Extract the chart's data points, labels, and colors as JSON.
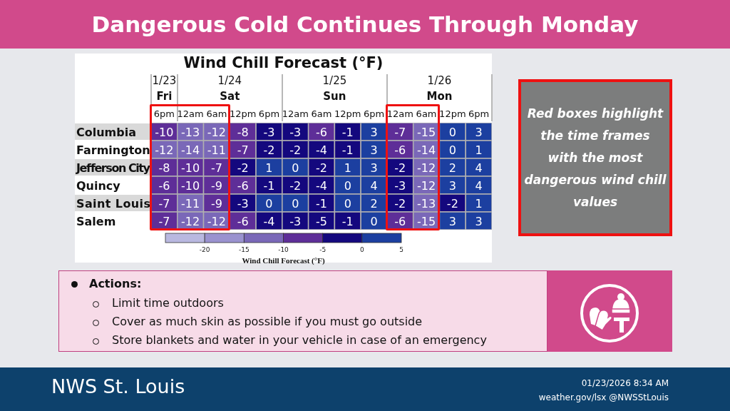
{
  "chart_data": {
    "type": "heatmap",
    "title": "Dangerous Cold Continues Through Monday",
    "subtitle": "Wind Chill Forecast (°F)",
    "clabel": "Wind Chill Forecast (°F)",
    "categories": [
      "6pm",
      "12am",
      "6am",
      "12pm",
      "6pm",
      "12am",
      "6am",
      "12pm",
      "6pm",
      "12am",
      "6am",
      "12pm",
      "6pm"
    ],
    "y_categories": [
      "Columbia",
      "Farmington",
      "Jefferson City",
      "Quincy",
      "Saint Louis",
      "Salem"
    ],
    "cells": [
      [
        -10,
        -13,
        -12,
        -8,
        -3,
        -3,
        -6,
        -1,
        3,
        -7,
        -15,
        0,
        3
      ],
      [
        -12,
        -14,
        -11,
        -7,
        -2,
        -2,
        -4,
        -1,
        3,
        -6,
        -14,
        0,
        1
      ],
      [
        -8,
        -10,
        -7,
        -2,
        1,
        0,
        -2,
        1,
        3,
        -2,
        -12,
        2,
        4
      ],
      [
        -6,
        -10,
        -9,
        -6,
        -1,
        -2,
        -4,
        0,
        4,
        -3,
        -12,
        3,
        4
      ],
      [
        -7,
        -11,
        -9,
        -3,
        0,
        0,
        -1,
        0,
        2,
        -2,
        -13,
        -2,
        1
      ],
      [
        -7,
        -12,
        -12,
        -6,
        -4,
        -3,
        -5,
        -1,
        0,
        -6,
        -15,
        3,
        3
      ]
    ],
    "data_labels": true,
    "clim": [
      -25,
      5
    ],
    "cticks": [
      -20,
      -15,
      -10,
      -5,
      0,
      5
    ],
    "colors": [
      "#b9b8e0",
      "#9a92cf",
      "#7a68b8",
      "#5e2e98",
      "#14087e",
      "#1c3fa0"
    ],
    "annotations": [
      "1/23",
      "Fri",
      "1/24",
      "Sat",
      "1/25",
      "Sun",
      "1/26",
      "Mon",
      "Red boxes highlight the time frames with the most dangerous wind chill values",
      "Actions:",
      "Limit time outdoors",
      "Cover as much skin as possible if you must go outside",
      "Store blankets and water in your vehicle in case of an emergency",
      "NWS St. Louis",
      "01/23/2026 8:34 AM",
      "weather.gov/lsx @NWSStLouis"
    ]
  }
}
